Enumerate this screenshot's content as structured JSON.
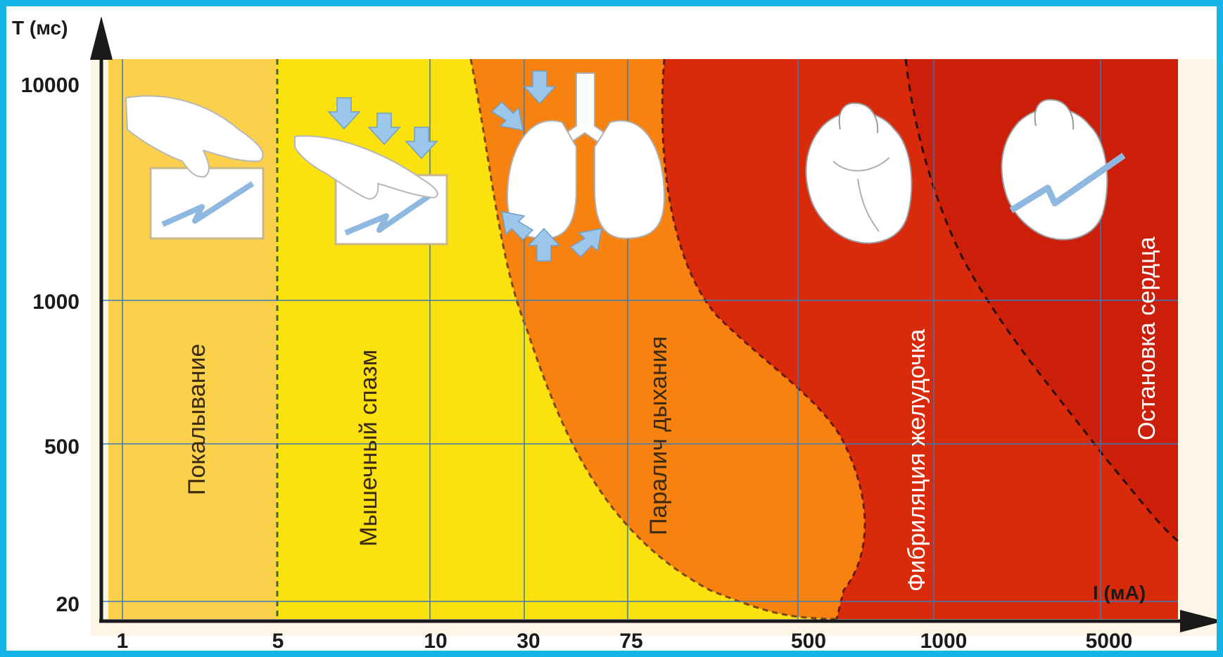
{
  "chart_data": {
    "type": "area",
    "title": "",
    "xlabel": "I (мА)",
    "ylabel": "T (мс)",
    "x_scale": "categorical-log",
    "y_scale": "log",
    "x_ticks": [
      "1",
      "5",
      "10",
      "30",
      "75",
      "500",
      "1000",
      "5000"
    ],
    "y_ticks": [
      "10000",
      "1000",
      "500",
      "20"
    ],
    "grid": true,
    "zones": [
      {
        "name": "Покалывание",
        "color": "#fbd04a",
        "x_from": "1",
        "x_to": "5"
      },
      {
        "name": "Мышечный спазм",
        "color": "#fbe10e",
        "x_from": "5",
        "x_to": "~18 → 500 (boundary curve)"
      },
      {
        "name": "Паралич дыхания",
        "color": "#f7820f",
        "x_from": "~18 (at 10000 мс) / ~500 (at 20 мс)",
        "x_to": "~90 (at 10000 мс) / ~700 (at 20 мс)"
      },
      {
        "name": "Фибриляция желудочка",
        "color": "#d92a0c",
        "x_from": "~90 (at 10000 мс) / ~700 (at 20 мс)",
        "x_to": "dashed curve ~750 (10000 мс) → 5000+ (20 мс)"
      },
      {
        "name": "Остановка сердца",
        "color": "#cc1f0a",
        "x_from": "dashed curve",
        "x_to": "5000+"
      }
    ]
  },
  "axis": {
    "y_title": "T (мс)",
    "x_title": "I (мА)"
  },
  "colors": {
    "frame_border": "#16b4e6",
    "zone_tingling": "#fbd04a",
    "zone_spasm": "#fbe10e",
    "zone_paralysis": "#f7820f",
    "zone_fibrillation": "#d92a0c",
    "zone_arrest": "#cc1f0a",
    "grid": "#3a7ab8",
    "icon_arrow": "#9cc6ea"
  },
  "icons": [
    "hand-shock-icon",
    "hand-spasm-icon",
    "lungs-icon",
    "heart-icon",
    "heart-shock-icon"
  ]
}
